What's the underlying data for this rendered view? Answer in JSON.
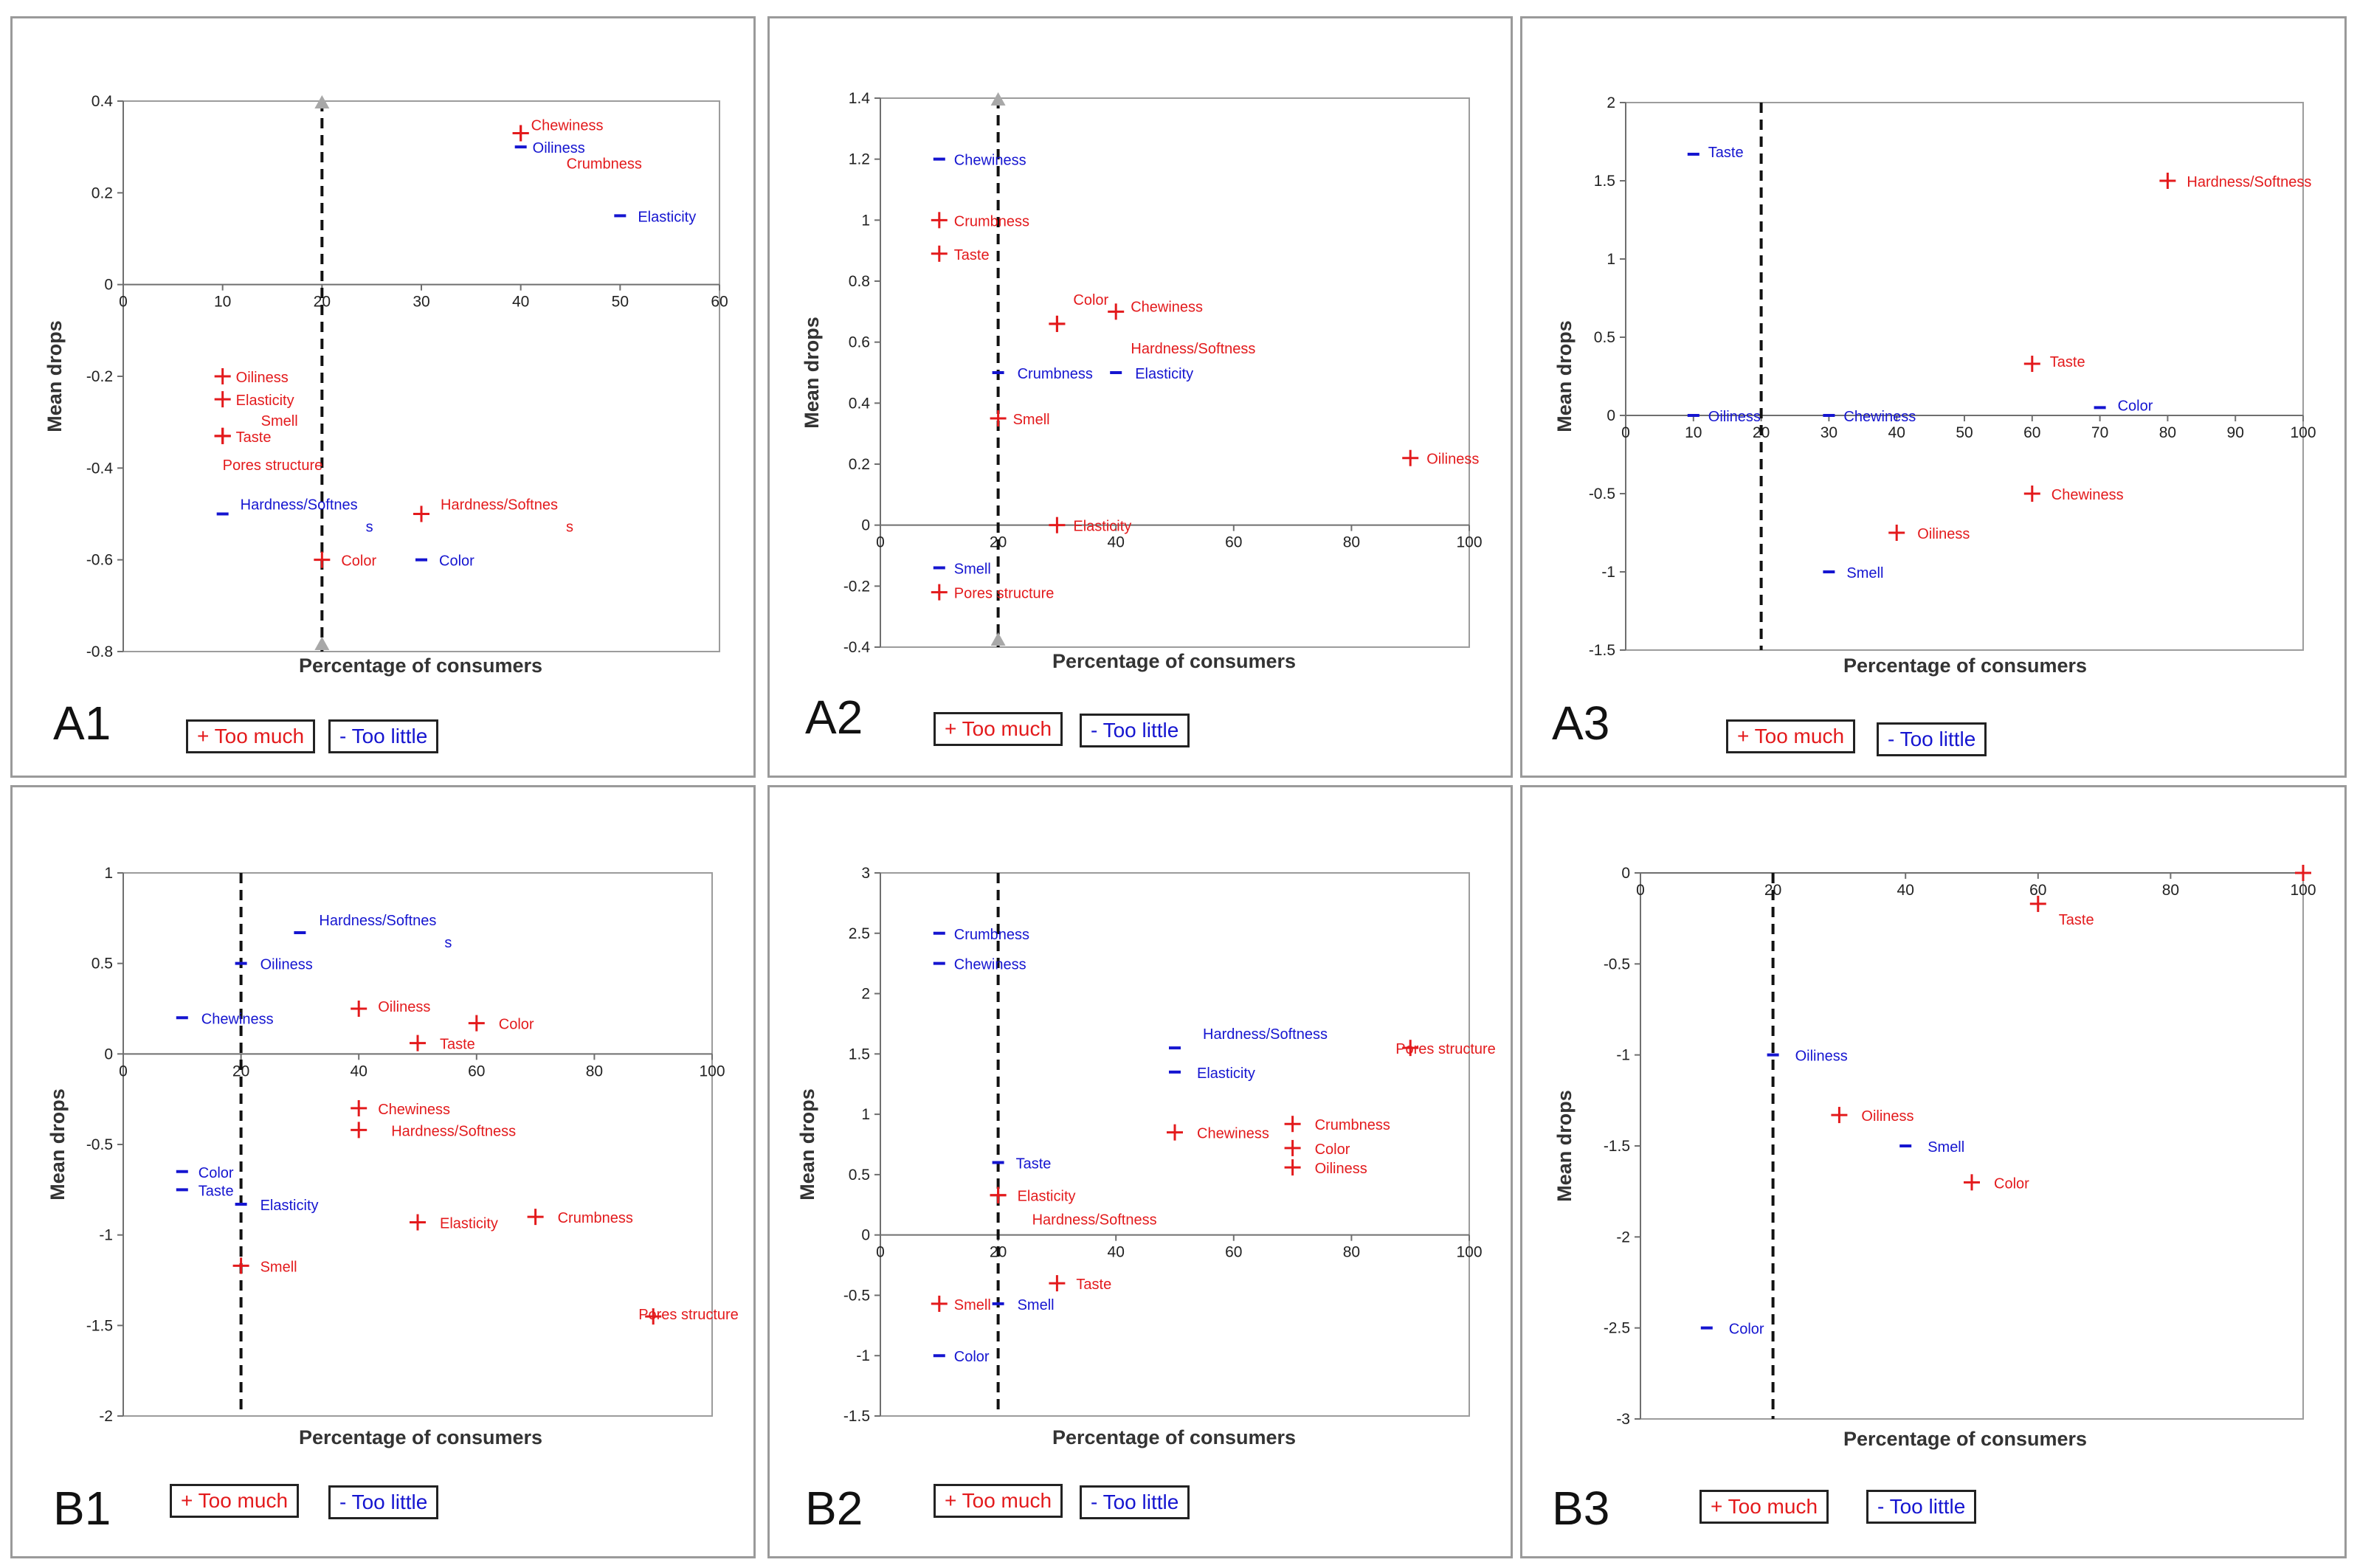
{
  "legend": {
    "too_much": "+ Too much",
    "too_little": "- Too little"
  },
  "colors": {
    "too_much": "#e31a1c",
    "too_little": "#1515d0",
    "axis": "#6f6f6f",
    "threshold": "#111111",
    "threshold_marker": "#a8a8a8"
  },
  "chart_data": [
    {
      "panel": "A1",
      "type": "scatter",
      "xlabel": "Percentage of consumers",
      "ylabel": "Mean drops",
      "xlim": [
        0,
        60
      ],
      "ylim": [
        -0.8,
        0.4
      ],
      "xticks": [
        "0",
        "10",
        "20",
        "30",
        "40",
        "50",
        "60"
      ],
      "yticks": [
        "0.4",
        "0.2",
        "0",
        "-0.2",
        "-0.4",
        "-0.6",
        "-0.8"
      ],
      "threshold_x": 20,
      "threshold_markers": true,
      "series": [
        {
          "name": "Too much",
          "points": [
            {
              "x": 40,
              "y": 0.33,
              "label": "Chewiness"
            },
            {
              "x": 40,
              "y": 0.33,
              "label": "Crumbness"
            },
            {
              "x": 10,
              "y": -0.2,
              "label": "Oiliness"
            },
            {
              "x": 10,
              "y": -0.25,
              "label": "Elasticity"
            },
            {
              "x": 10,
              "y": -0.33,
              "label": "Smell"
            },
            {
              "x": 10,
              "y": -0.33,
              "label": "Taste"
            },
            {
              "x": 10,
              "y": -0.33,
              "label": "Pores structure"
            },
            {
              "x": 30,
              "y": -0.5,
              "label": "Hardness/Softnes s"
            },
            {
              "x": 20,
              "y": -0.6,
              "label": "Color"
            }
          ]
        },
        {
          "name": "Too little",
          "points": [
            {
              "x": 40,
              "y": 0.3,
              "label": "Oiliness"
            },
            {
              "x": 50,
              "y": 0.15,
              "label": "Elasticity"
            },
            {
              "x": 10,
              "y": -0.5,
              "label": "Hardness/Softnes s"
            },
            {
              "x": 30,
              "y": -0.6,
              "label": "Color"
            }
          ]
        }
      ]
    },
    {
      "panel": "A2",
      "type": "scatter",
      "xlabel": "Percentage of consumers",
      "ylabel": "Mean drops",
      "xlim": [
        0,
        100
      ],
      "ylim": [
        -0.4,
        1.4
      ],
      "xticks": [
        "0",
        "20",
        "40",
        "60",
        "80",
        "100"
      ],
      "yticks": [
        "1.4",
        "1.2",
        "1",
        "0.8",
        "0.6",
        "0.4",
        "0.2",
        "0",
        "-0.2",
        "-0.4"
      ],
      "threshold_x": 20,
      "threshold_markers": true,
      "series": [
        {
          "name": "Too much",
          "points": [
            {
              "x": 10,
              "y": 1.0,
              "label": "Crumbness"
            },
            {
              "x": 10,
              "y": 0.89,
              "label": "Taste"
            },
            {
              "x": 30,
              "y": 0.66,
              "label": "Color"
            },
            {
              "x": 40,
              "y": 0.7,
              "label": "Chewiness"
            },
            {
              "x": 30,
              "y": 0.66,
              "label": "Hardness/Softness"
            },
            {
              "x": 20,
              "y": 0.35,
              "label": "Smell"
            },
            {
              "x": 90,
              "y": 0.22,
              "label": "Oiliness"
            },
            {
              "x": 30,
              "y": 0.0,
              "label": "Elasticity"
            },
            {
              "x": 10,
              "y": -0.22,
              "label": "Pores structure"
            }
          ]
        },
        {
          "name": "Too little",
          "points": [
            {
              "x": 10,
              "y": 1.2,
              "label": "Chewiness"
            },
            {
              "x": 20,
              "y": 0.5,
              "label": "Crumbness"
            },
            {
              "x": 40,
              "y": 0.5,
              "label": "Elasticity"
            },
            {
              "x": 10,
              "y": -0.14,
              "label": "Smell"
            }
          ]
        }
      ]
    },
    {
      "panel": "A3",
      "type": "scatter",
      "xlabel": "Percentage of consumers",
      "ylabel": "Mean drops",
      "xlim": [
        0,
        100
      ],
      "ylim": [
        -1.5,
        2
      ],
      "xticks": [
        "0",
        "10",
        "20",
        "30",
        "40",
        "50",
        "60",
        "70",
        "80",
        "90",
        "100"
      ],
      "yticks": [
        "2",
        "1.5",
        "1",
        "0.5",
        "0",
        "-0.5",
        "-1",
        "-1.5"
      ],
      "threshold_x": 20,
      "threshold_markers": false,
      "series": [
        {
          "name": "Too much",
          "points": [
            {
              "x": 80,
              "y": 1.5,
              "label": "Hardness/Softness"
            },
            {
              "x": 60,
              "y": 0.33,
              "label": "Taste"
            },
            {
              "x": 60,
              "y": -0.5,
              "label": "Chewiness"
            },
            {
              "x": 40,
              "y": -0.75,
              "label": "Oiliness"
            }
          ]
        },
        {
          "name": "Too little",
          "points": [
            {
              "x": 10,
              "y": 1.67,
              "label": "Taste"
            },
            {
              "x": 10,
              "y": 0.0,
              "label": "Oiliness"
            },
            {
              "x": 30,
              "y": 0.0,
              "label": "Chewiness"
            },
            {
              "x": 70,
              "y": 0.05,
              "label": "Color"
            },
            {
              "x": 30,
              "y": -1.0,
              "label": "Smell"
            }
          ]
        }
      ]
    },
    {
      "panel": "B1",
      "type": "scatter",
      "xlabel": "Percentage of consumers",
      "ylabel": "Mean drops",
      "xlim": [
        0,
        100
      ],
      "ylim": [
        -2,
        1
      ],
      "xticks": [
        "0",
        "20",
        "40",
        "60",
        "80",
        "100"
      ],
      "yticks": [
        "1",
        "0.5",
        "0",
        "-0.5",
        "-1",
        "-1.5",
        "-2"
      ],
      "threshold_x": 20,
      "threshold_markers": false,
      "series": [
        {
          "name": "Too much",
          "points": [
            {
              "x": 40,
              "y": 0.25,
              "label": "Oiliness"
            },
            {
              "x": 60,
              "y": 0.17,
              "label": "Color"
            },
            {
              "x": 50,
              "y": 0.06,
              "label": "Taste"
            },
            {
              "x": 40,
              "y": -0.3,
              "label": "Chewiness"
            },
            {
              "x": 40,
              "y": -0.42,
              "label": "Hardness/Softness"
            },
            {
              "x": 50,
              "y": -0.93,
              "label": "Elasticity"
            },
            {
              "x": 70,
              "y": -0.9,
              "label": "Crumbness"
            },
            {
              "x": 20,
              "y": -1.17,
              "label": "Smell"
            },
            {
              "x": 90,
              "y": -1.45,
              "label": "Pores structure"
            }
          ]
        },
        {
          "name": "Too little",
          "points": [
            {
              "x": 30,
              "y": 0.67,
              "label": "Hardness/Softnes s"
            },
            {
              "x": 20,
              "y": 0.5,
              "label": "Oiliness"
            },
            {
              "x": 10,
              "y": 0.2,
              "label": "Chewiness"
            },
            {
              "x": 10,
              "y": -0.65,
              "label": "Color"
            },
            {
              "x": 10,
              "y": -0.75,
              "label": "Taste"
            },
            {
              "x": 20,
              "y": -0.83,
              "label": "Elasticity"
            }
          ]
        }
      ]
    },
    {
      "panel": "B2",
      "type": "scatter",
      "xlabel": "Percentage of consumers",
      "ylabel": "Mean drops",
      "xlim": [
        0,
        100
      ],
      "ylim": [
        -1.5,
        3
      ],
      "xticks": [
        "0",
        "20",
        "40",
        "60",
        "80",
        "100"
      ],
      "yticks": [
        "3",
        "2.5",
        "2",
        "1.5",
        "1",
        "0.5",
        "0",
        "-0.5",
        "-1",
        "-1.5"
      ],
      "threshold_x": 20,
      "threshold_markers": false,
      "series": [
        {
          "name": "Too much",
          "points": [
            {
              "x": 90,
              "y": 1.55,
              "label": "Pores structure"
            },
            {
              "x": 50,
              "y": 0.85,
              "label": "Chewiness"
            },
            {
              "x": 70,
              "y": 0.92,
              "label": "Crumbness"
            },
            {
              "x": 70,
              "y": 0.72,
              "label": "Color"
            },
            {
              "x": 70,
              "y": 0.56,
              "label": "Oiliness"
            },
            {
              "x": 20,
              "y": 0.33,
              "label": "Elasticity"
            },
            {
              "x": 20,
              "y": 0.33,
              "label": "Hardness/Softness"
            },
            {
              "x": 30,
              "y": -0.4,
              "label": "Taste"
            },
            {
              "x": 10,
              "y": -0.57,
              "label": "Smell"
            }
          ]
        },
        {
          "name": "Too little",
          "points": [
            {
              "x": 10,
              "y": 2.5,
              "label": "Crumbness"
            },
            {
              "x": 10,
              "y": 2.25,
              "label": "Chewiness"
            },
            {
              "x": 50,
              "y": 1.55,
              "label": "Hardness/Softness"
            },
            {
              "x": 50,
              "y": 1.35,
              "label": "Elasticity"
            },
            {
              "x": 20,
              "y": 0.6,
              "label": "Taste"
            },
            {
              "x": 20,
              "y": -0.57,
              "label": "Smell"
            },
            {
              "x": 10,
              "y": -1.0,
              "label": "Color"
            }
          ]
        }
      ]
    },
    {
      "panel": "B3",
      "type": "scatter",
      "xlabel": "Percentage of consumers",
      "ylabel": "Mean drops",
      "xlim": [
        0,
        100
      ],
      "ylim": [
        -3,
        0
      ],
      "xticks": [
        "0",
        "20",
        "40",
        "60",
        "80",
        "100"
      ],
      "yticks": [
        "0",
        "-0.5",
        "-1",
        "-1.5",
        "-2",
        "-2.5",
        "-3"
      ],
      "threshold_x": 20,
      "threshold_markers": false,
      "series": [
        {
          "name": "Too much",
          "points": [
            {
              "x": 100,
              "y": 0.0,
              "label": ""
            },
            {
              "x": 60,
              "y": -0.17,
              "label": "Taste"
            },
            {
              "x": 30,
              "y": -1.33,
              "label": "Oiliness"
            },
            {
              "x": 50,
              "y": -1.7,
              "label": "Color"
            }
          ]
        },
        {
          "name": "Too little",
          "points": [
            {
              "x": 20,
              "y": -1.0,
              "label": "Oiliness"
            },
            {
              "x": 40,
              "y": -1.5,
              "label": "Smell"
            },
            {
              "x": 10,
              "y": -2.5,
              "label": "Color"
            }
          ]
        }
      ]
    }
  ]
}
